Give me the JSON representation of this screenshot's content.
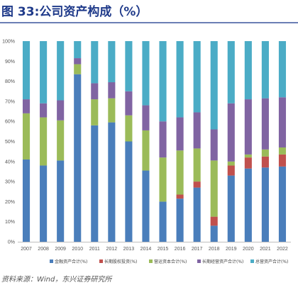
{
  "title": "图 33:公司资产构成（%）",
  "source": "资料来源：Wind，东兴证券研究所",
  "colors": {
    "financial": "#4a7ebb",
    "equity": "#c0504d",
    "operating": "#9bbb59",
    "long_term_operating": "#8064a2",
    "other": "#4bacc6"
  },
  "chart_data": {
    "type": "bar",
    "stacked": true,
    "title": "图 33:公司资产构成（%）",
    "xlabel": "",
    "ylabel": "",
    "ylim": [
      0,
      100
    ],
    "y_ticks": [
      "0%",
      "10%",
      "20%",
      "30%",
      "40%",
      "50%",
      "60%",
      "70%",
      "80%",
      "90%",
      "100%"
    ],
    "grid": false,
    "legend_position": "bottom",
    "categories": [
      "2007",
      "2008",
      "2009",
      "2010",
      "2011",
      "2012",
      "2013",
      "2014",
      "2015",
      "2016",
      "2017",
      "2018",
      "2019",
      "2020",
      "2021",
      "2022"
    ],
    "series": [
      {
        "name": "金融资产合计(%)",
        "color_key": "financial",
        "values": [
          41,
          38,
          40.5,
          83.5,
          58,
          59.5,
          50,
          35.5,
          20,
          21.5,
          27,
          8,
          33,
          36.5,
          37,
          37.5
        ]
      },
      {
        "name": "长期股权投资(%)",
        "color_key": "equity",
        "values": [
          0,
          0,
          0,
          0,
          0,
          0,
          0,
          0,
          0,
          2,
          3,
          4.5,
          5,
          5.5,
          5.5,
          6
        ]
      },
      {
        "name": "营运资本合计(%)",
        "color_key": "operating",
        "values": [
          23,
          24,
          20,
          5,
          13,
          12,
          13,
          20,
          22,
          22,
          16.5,
          28,
          2,
          1.5,
          3.5,
          3.5
        ]
      },
      {
        "name": "长期经营资产合计(%)",
        "color_key": "long_term_operating",
        "values": [
          7,
          7,
          10,
          3,
          8,
          8,
          12,
          12.5,
          18,
          16.5,
          18,
          15.5,
          29,
          27.5,
          25.5,
          25
        ]
      },
      {
        "name": "总营资产合计(%)",
        "color_key": "other",
        "values": [
          29,
          31,
          29.5,
          8.5,
          21,
          20.5,
          25,
          32,
          40,
          38,
          35.5,
          44,
          31,
          29,
          28.5,
          28
        ]
      }
    ]
  }
}
